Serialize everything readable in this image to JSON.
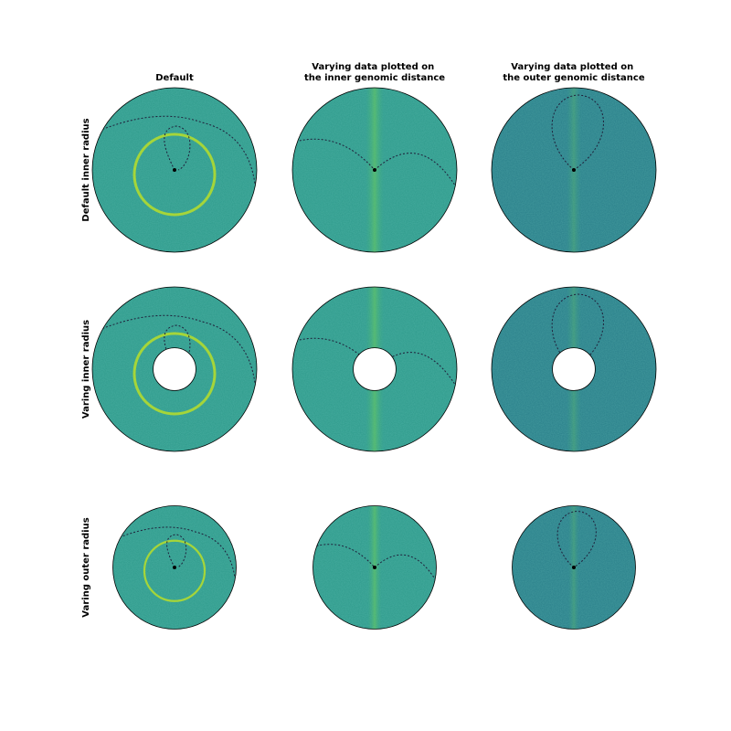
{
  "figure": {
    "columns": [
      {
        "title_lines": [
          "Default"
        ]
      },
      {
        "title_lines": [
          "Varying data plotted on",
          "the inner genomic distance"
        ]
      },
      {
        "title_lines": [
          "Varying data plotted on",
          "the outer genomic distance"
        ]
      }
    ],
    "rows": [
      {
        "title": "Default inner radius"
      },
      {
        "title": "Varing inner radius"
      },
      {
        "title": "Varing outer radius"
      }
    ],
    "panels": [
      {
        "row": 0,
        "col": 0,
        "inner_radius": 0.0,
        "outer_radius": 1.0,
        "pattern": "ring-and-loops"
      },
      {
        "row": 0,
        "col": 1,
        "inner_radius": 0.0,
        "outer_radius": 1.0,
        "pattern": "twin-arcs"
      },
      {
        "row": 0,
        "col": 2,
        "inner_radius": 0.0,
        "outer_radius": 1.0,
        "pattern": "teardrop"
      },
      {
        "row": 1,
        "col": 0,
        "inner_radius": 0.26,
        "outer_radius": 1.0,
        "pattern": "ring-and-loops"
      },
      {
        "row": 1,
        "col": 1,
        "inner_radius": 0.26,
        "outer_radius": 1.0,
        "pattern": "twin-arcs"
      },
      {
        "row": 1,
        "col": 2,
        "inner_radius": 0.26,
        "outer_radius": 1.0,
        "pattern": "teardrop"
      },
      {
        "row": 2,
        "col": 0,
        "inner_radius": 0.0,
        "outer_radius": 0.75,
        "pattern": "ring-and-loops"
      },
      {
        "row": 2,
        "col": 1,
        "inner_radius": 0.0,
        "outer_radius": 0.75,
        "pattern": "twin-arcs"
      },
      {
        "row": 2,
        "col": 2,
        "inner_radius": 0.0,
        "outer_radius": 0.75,
        "pattern": "teardrop"
      }
    ],
    "colors": {
      "base": "#2f9b8c",
      "base_dark": "#2a7f8a",
      "bright": "#b8de29",
      "mid": "#5ec962",
      "line": "#1f1f3a",
      "edge": "#000000"
    }
  }
}
